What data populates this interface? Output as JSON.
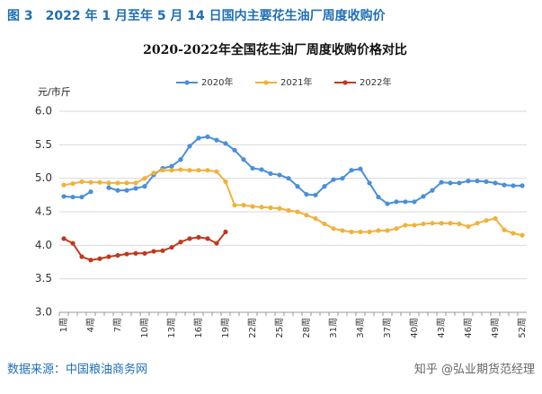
{
  "header": {
    "title": "图 3　2022 年 1 月至年 5 月 14 日国内主要花生油厂周度收购价"
  },
  "chart_data": {
    "type": "line",
    "title": "2020-2022年全国花生油厂周度收购价格对比",
    "y_label": "元/市斤",
    "categories": [
      "1周",
      null,
      null,
      "4周",
      null,
      null,
      "7周",
      null,
      null,
      "10周",
      null,
      null,
      "13周",
      null,
      null,
      "16周",
      null,
      null,
      "19周",
      null,
      null,
      "22周",
      null,
      null,
      "25周",
      null,
      null,
      "28周",
      null,
      null,
      "31周",
      null,
      null,
      "34周",
      null,
      null,
      "37周",
      null,
      null,
      "40周",
      null,
      null,
      "43周",
      null,
      null,
      "46周",
      null,
      null,
      "49周",
      null,
      null,
      "52周"
    ],
    "series": [
      {
        "name": "2020年",
        "color": "#4a8fd8",
        "values": [
          4.73,
          4.72,
          4.72,
          4.8,
          null,
          4.86,
          4.82,
          4.82,
          4.85,
          4.88,
          5.05,
          5.15,
          5.18,
          5.28,
          5.48,
          5.6,
          5.62,
          5.57,
          5.52,
          5.42,
          5.28,
          5.15,
          5.13,
          5.07,
          5.05,
          5.0,
          4.88,
          4.76,
          4.75,
          4.88,
          4.98,
          5.0,
          5.12,
          5.14,
          4.93,
          4.72,
          4.62,
          4.65,
          4.65,
          4.65,
          4.73,
          4.82,
          4.94,
          4.93,
          4.93,
          4.96,
          4.96,
          4.95,
          4.93,
          4.9,
          4.89,
          4.89
        ]
      },
      {
        "name": "2021年",
        "color": "#f2b13c",
        "values": [
          4.9,
          4.92,
          4.95,
          4.94,
          4.94,
          4.93,
          4.93,
          4.93,
          4.93,
          5.0,
          5.08,
          5.12,
          5.12,
          5.13,
          5.12,
          5.12,
          5.12,
          5.1,
          4.95,
          4.6,
          4.6,
          4.58,
          4.57,
          4.56,
          4.55,
          4.52,
          4.5,
          4.45,
          4.4,
          4.32,
          4.25,
          4.22,
          4.2,
          4.2,
          4.2,
          4.22,
          4.22,
          4.25,
          4.3,
          4.3,
          4.32,
          4.33,
          4.33,
          4.33,
          4.32,
          4.28,
          4.33,
          4.37,
          4.4,
          4.23,
          4.18,
          4.15
        ]
      },
      {
        "name": "2022年",
        "color": "#c0391b",
        "values": [
          4.1,
          4.03,
          3.83,
          3.78,
          3.8,
          3.83,
          3.85,
          3.87,
          3.88,
          3.88,
          3.91,
          3.92,
          3.97,
          4.05,
          4.1,
          4.12,
          4.1,
          4.03,
          4.2,
          null,
          null,
          null,
          null,
          null,
          null,
          null,
          null,
          null,
          null,
          null,
          null,
          null,
          null,
          null,
          null,
          null,
          null,
          null,
          null,
          null,
          null,
          null,
          null,
          null,
          null,
          null,
          null,
          null,
          null,
          null,
          null,
          null
        ]
      }
    ],
    "ylim": [
      3,
      6
    ],
    "yticks": [
      {
        "value": 3,
        "label": "3.0"
      },
      3.5,
      {
        "value": 4,
        "label": "4.0"
      },
      4.5,
      {
        "value": 5,
        "label": "5.0"
      },
      5.5,
      {
        "value": 6,
        "label": "6.0"
      }
    ],
    "grid": true,
    "legend": "top"
  },
  "footer": {
    "source": "数据来源：中国粮油商务网",
    "watermark": "知乎 @弘业期货范经理"
  }
}
